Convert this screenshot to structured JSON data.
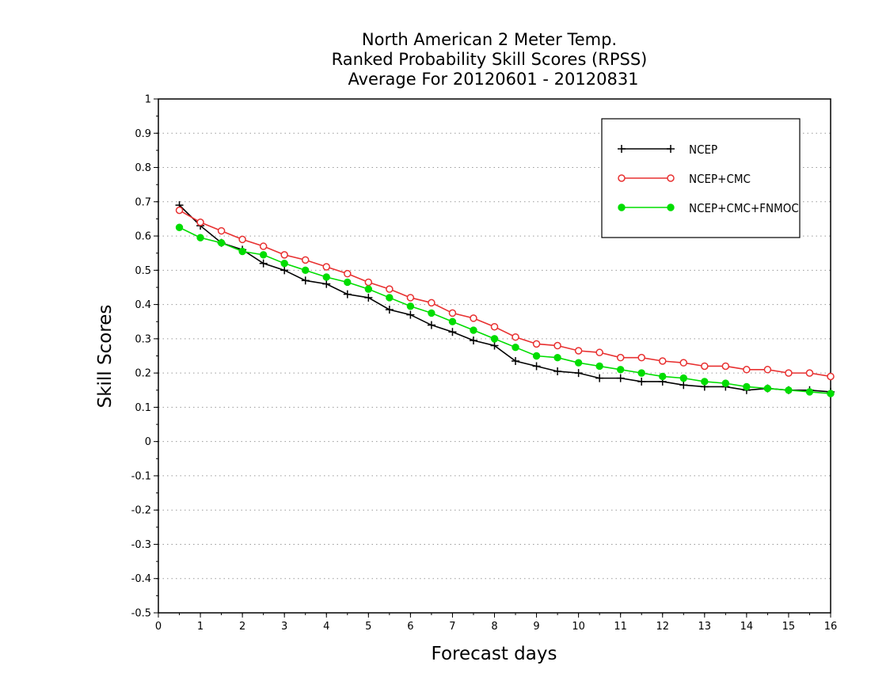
{
  "chart_data": {
    "type": "line",
    "title_lines": [
      "North American 2 Meter Temp.",
      "Ranked Probability Skill Scores (RPSS)",
      "Average For 20120601 - 20120831"
    ],
    "xlabel": "Forecast days",
    "ylabel": "Skill Scores",
    "xlim": [
      0,
      16
    ],
    "ylim": [
      -0.5,
      1
    ],
    "x_ticks": [
      0,
      1,
      2,
      3,
      4,
      5,
      6,
      7,
      8,
      9,
      10,
      11,
      12,
      13,
      14,
      15,
      16
    ],
    "y_ticks": [
      -0.5,
      -0.4,
      -0.3,
      -0.2,
      -0.1,
      0,
      0.1,
      0.2,
      0.3,
      0.4,
      0.5,
      0.6,
      0.7,
      0.8,
      0.9,
      1
    ],
    "grid": "horizontal-dotted",
    "legend_position": "top-right",
    "x": [
      0.5,
      1,
      1.5,
      2,
      2.5,
      3,
      3.5,
      4,
      4.5,
      5,
      5.5,
      6,
      6.5,
      7,
      7.5,
      8,
      8.5,
      9,
      9.5,
      10,
      10.5,
      11,
      11.5,
      12,
      12.5,
      13,
      13.5,
      14,
      14.5,
      15,
      15.5,
      16
    ],
    "series": [
      {
        "name": "NCEP",
        "color": "#000000",
        "marker": "plus",
        "values": [
          0.69,
          0.63,
          0.58,
          0.56,
          0.52,
          0.5,
          0.47,
          0.46,
          0.43,
          0.42,
          0.385,
          0.37,
          0.34,
          0.32,
          0.295,
          0.28,
          0.235,
          0.22,
          0.205,
          0.2,
          0.185,
          0.185,
          0.175,
          0.175,
          0.165,
          0.16,
          0.16,
          0.15,
          0.155,
          0.15,
          0.15,
          0.145
        ]
      },
      {
        "name": "NCEP+CMC",
        "color": "#e83030",
        "marker": "open-circle",
        "values": [
          0.675,
          0.64,
          0.615,
          0.59,
          0.57,
          0.545,
          0.53,
          0.51,
          0.49,
          0.465,
          0.445,
          0.42,
          0.405,
          0.375,
          0.36,
          0.335,
          0.305,
          0.285,
          0.28,
          0.265,
          0.26,
          0.245,
          0.245,
          0.235,
          0.23,
          0.22,
          0.22,
          0.21,
          0.21,
          0.2,
          0.2,
          0.19
        ]
      },
      {
        "name": "NCEP+CMC+FNMOC",
        "color": "#00dd00",
        "marker": "filled-circle",
        "values": [
          0.625,
          0.595,
          0.58,
          0.555,
          0.545,
          0.52,
          0.5,
          0.48,
          0.465,
          0.445,
          0.42,
          0.395,
          0.375,
          0.35,
          0.325,
          0.3,
          0.275,
          0.25,
          0.245,
          0.23,
          0.22,
          0.21,
          0.2,
          0.19,
          0.185,
          0.175,
          0.17,
          0.16,
          0.155,
          0.15,
          0.145,
          0.14
        ]
      }
    ]
  }
}
